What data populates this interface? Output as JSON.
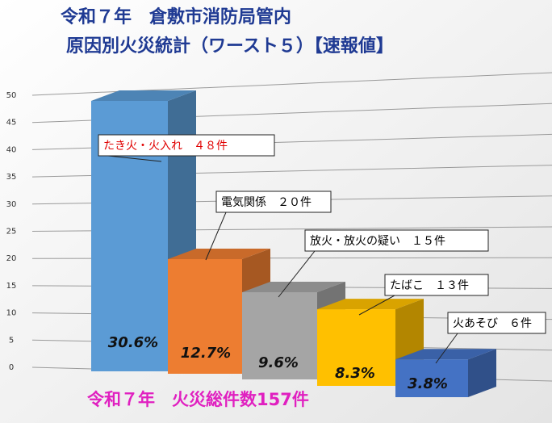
{
  "chart_data": {
    "type": "bar3d",
    "title": "令和７年　倉敷市消防局管内",
    "subtitle": "原因別火災統計（ワースト５）【速報値】",
    "footer": "令和７年　火災総件数157件",
    "categories": [
      "たき火・火入れ　４８件",
      "電気関係　２０件",
      "放火・放火の疑い　１５件",
      "たばこ　１３件",
      "火あそび　６件"
    ],
    "values": [
      48,
      20,
      15,
      13,
      6
    ],
    "percent_labels": [
      "30.6%",
      "12.7%",
      "9.6%",
      "8.3%",
      "3.8%"
    ],
    "colors": [
      "#5b9bd5",
      "#ed7d31",
      "#a5a5a5",
      "#ffc000",
      "#4472c4"
    ],
    "label_colors": [
      "#e00000",
      "#000000",
      "#000000",
      "#000000",
      "#000000"
    ],
    "ylim": [
      0,
      50
    ],
    "yticks": [
      0,
      5,
      10,
      15,
      20,
      25,
      30,
      35,
      40,
      45,
      50
    ],
    "grid": true
  }
}
